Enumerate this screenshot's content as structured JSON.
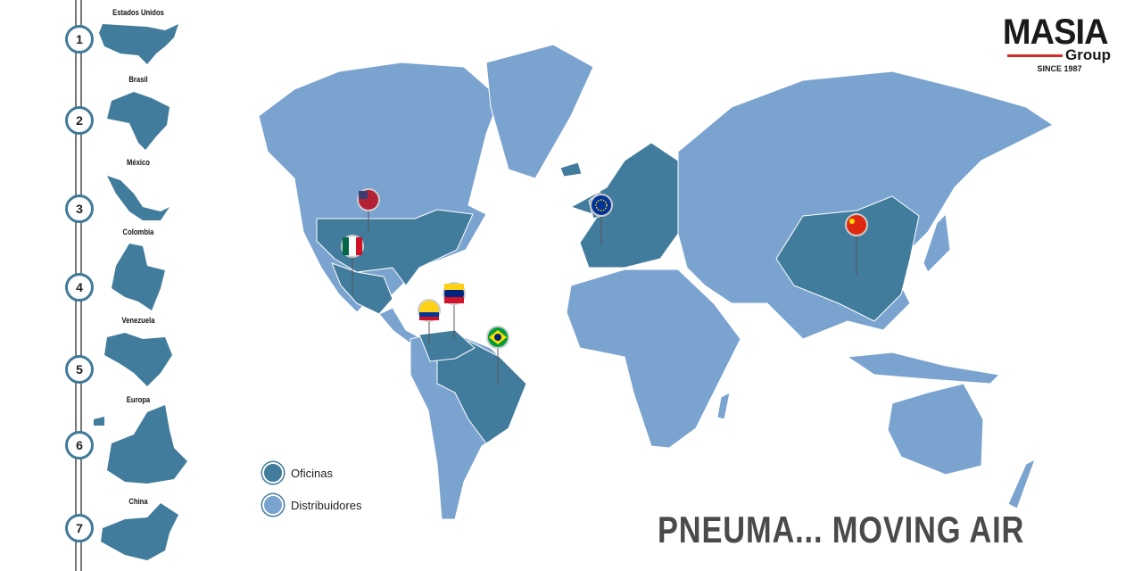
{
  "logo": {
    "name": "MASIA",
    "sub": "Group",
    "since": "SINCE 1987"
  },
  "sidebar": {
    "items": [
      {
        "number": "1",
        "label": "Estados Unidos"
      },
      {
        "number": "2",
        "label": "Brasil"
      },
      {
        "number": "3",
        "label": "México"
      },
      {
        "number": "4",
        "label": "Colombia"
      },
      {
        "number": "5",
        "label": "Venezuela"
      },
      {
        "number": "6",
        "label": "Europa"
      },
      {
        "number": "7",
        "label": "China"
      }
    ]
  },
  "legend": {
    "offices": "Oficinas",
    "distributors": "Distribuidores"
  },
  "tagline": "PNEUMA... MOVING AIR",
  "colors": {
    "offices": "#427c9c",
    "distributors": "#7ba3d0",
    "accent": "#d32a25"
  },
  "pins": [
    "usa-flag",
    "mexico-flag",
    "colombia-flag",
    "venezuela-flag",
    "brazil-flag",
    "eu-flag",
    "china-flag"
  ]
}
